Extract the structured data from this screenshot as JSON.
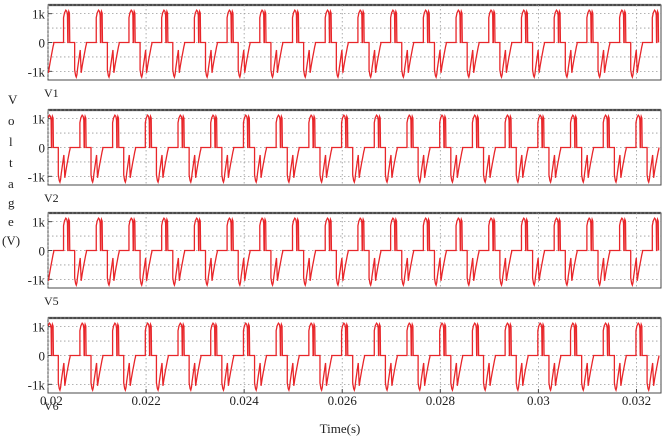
{
  "figure": {
    "ylabel_chars": [
      "V",
      "o",
      "l",
      "t",
      "a",
      "g",
      "e",
      "(V)"
    ],
    "xlabel": "Time(s)"
  },
  "colors": {
    "trace": "#e8262a",
    "grid": "#9a9a9a",
    "frame": "#4a4a4a"
  },
  "chart_data": {
    "type": "line",
    "x_range": [
      0.02,
      0.0325
    ],
    "x_ticks": [
      {
        "value": 0.02,
        "label": "0.02"
      },
      {
        "value": 0.022,
        "label": "0.022"
      },
      {
        "value": 0.024,
        "label": "0.024"
      },
      {
        "value": 0.026,
        "label": "0.026"
      },
      {
        "value": 0.028,
        "label": "0.028"
      },
      {
        "value": 0.03,
        "label": "0.03"
      },
      {
        "value": 0.032,
        "label": "0.032"
      }
    ],
    "xlabel": "Time(s)",
    "ylabel": "Voltage(V)",
    "grid": true,
    "waveform_period_s": 0.000667,
    "panels": [
      {
        "name": "V1",
        "ylim": [
          -1300,
          1300
        ],
        "y_ticks": [
          {
            "value": 1000,
            "label": "1k"
          },
          {
            "value": 0,
            "label": "0"
          },
          {
            "value": -1000,
            "label": "-1k"
          }
        ],
        "phase": 0.0
      },
      {
        "name": "V2",
        "ylim": [
          -1300,
          1300
        ],
        "y_ticks": [
          {
            "value": 1000,
            "label": "1k"
          },
          {
            "value": 0,
            "label": "0"
          },
          {
            "value": -1000,
            "label": "-1k"
          }
        ],
        "phase": 0.5
      },
      {
        "name": "V5",
        "ylim": [
          -1300,
          1300
        ],
        "y_ticks": [
          {
            "value": 1000,
            "label": "1k"
          },
          {
            "value": 0,
            "label": "0"
          },
          {
            "value": -1000,
            "label": "-1k"
          }
        ],
        "phase": 0.0
      },
      {
        "name": "V6",
        "ylim": [
          -1300,
          1300
        ],
        "y_ticks": [
          {
            "value": 1000,
            "label": "1k"
          },
          {
            "value": 0,
            "label": "0"
          },
          {
            "value": -1000,
            "label": "-1k"
          }
        ],
        "phase": 0.5
      }
    ],
    "cycle_shape": [
      [
        0.0,
        -1050
      ],
      [
        0.03,
        -820
      ],
      [
        0.07,
        -560
      ],
      [
        0.11,
        -320
      ],
      [
        0.14,
        -140
      ],
      [
        0.16,
        -50
      ],
      [
        0.16,
        0
      ],
      [
        0.46,
        0
      ],
      [
        0.46,
        860
      ],
      [
        0.49,
        1030
      ],
      [
        0.53,
        1120
      ],
      [
        0.56,
        1080
      ],
      [
        0.58,
        950
      ],
      [
        0.59,
        0
      ],
      [
        0.6,
        0
      ],
      [
        0.6,
        950
      ],
      [
        0.62,
        1080
      ],
      [
        0.64,
        1020
      ],
      [
        0.65,
        0
      ],
      [
        0.8,
        0
      ],
      [
        0.8,
        -950
      ],
      [
        0.83,
        -1150
      ],
      [
        0.85,
        -1200
      ],
      [
        0.87,
        -1110
      ],
      [
        0.89,
        -900
      ],
      [
        0.93,
        -580
      ],
      [
        0.97,
        -260
      ],
      [
        1.0,
        -1050
      ]
    ]
  }
}
